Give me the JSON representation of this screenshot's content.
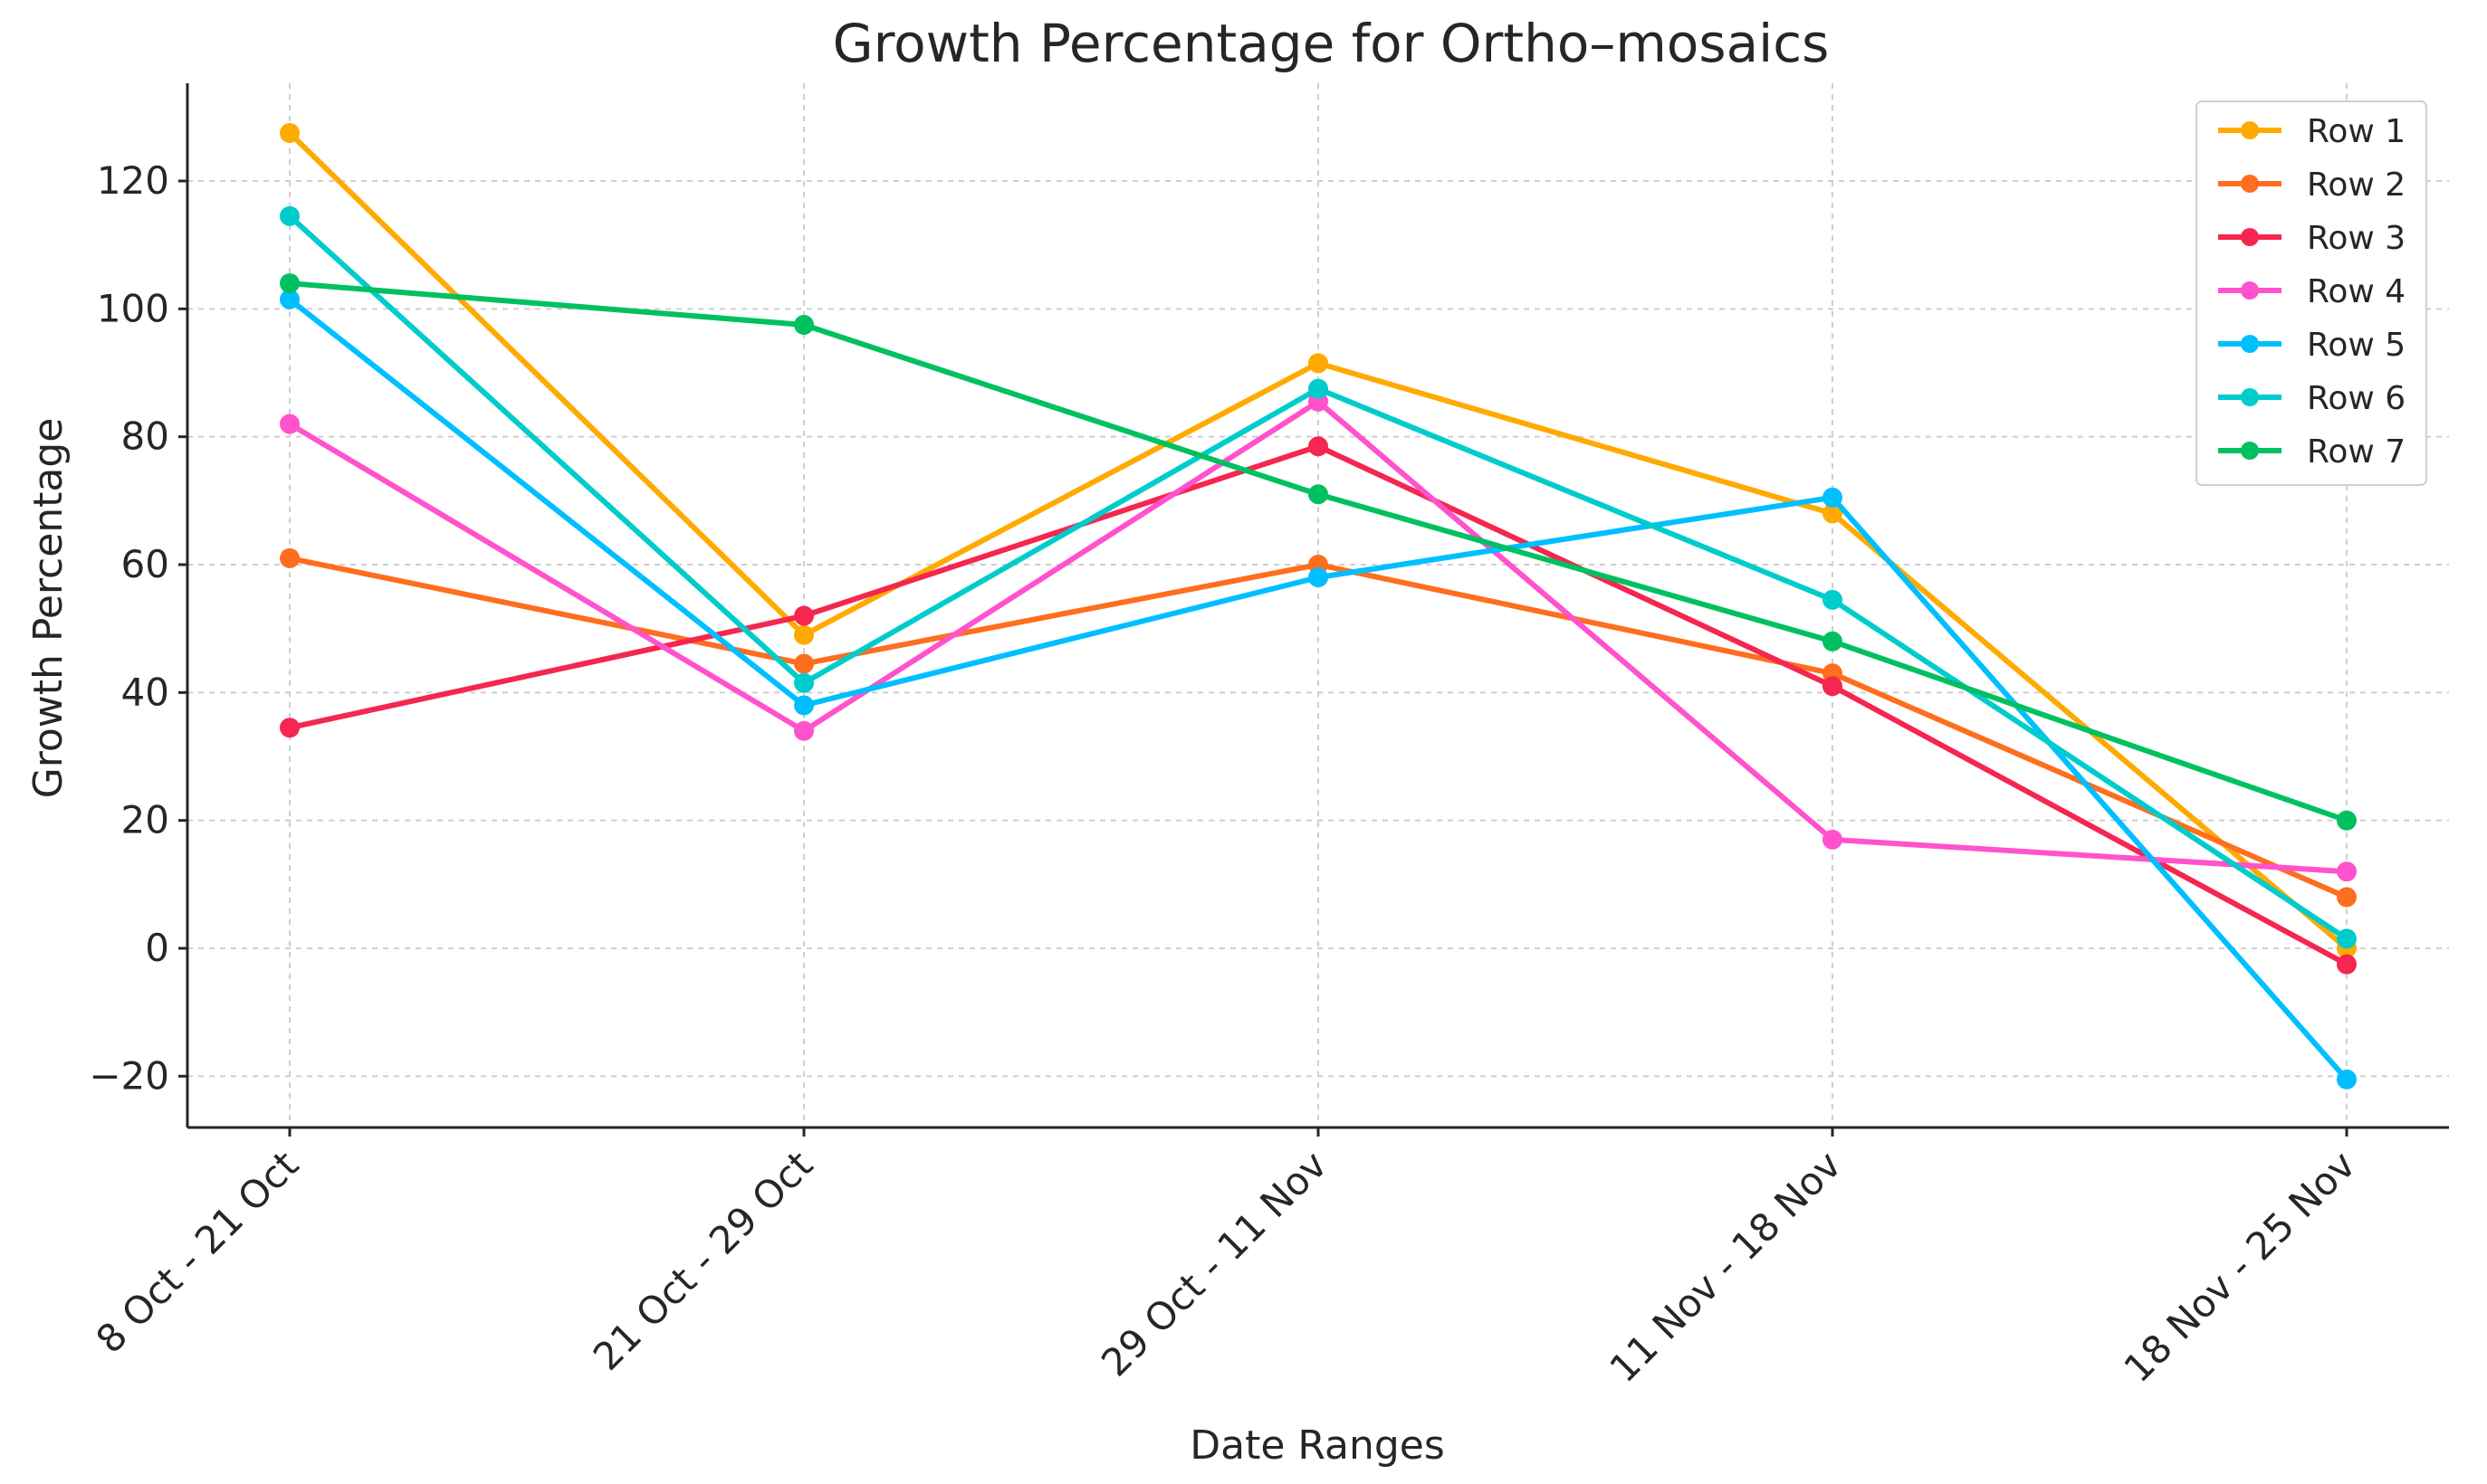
{
  "chart_data": {
    "type": "line",
    "title": "Growth Percentage for Ortho–mosaics",
    "xlabel": "Date Ranges",
    "ylabel": "Growth Percentage",
    "categories": [
      "8 Oct - 21 Oct",
      "21 Oct - 29 Oct",
      "29 Oct - 11 Nov",
      "11 Nov - 18 Nov",
      "18 Nov - 25 Nov"
    ],
    "yticks": [
      -20,
      0,
      20,
      40,
      60,
      80,
      100,
      120
    ],
    "ytick_labels": [
      "−20",
      "0",
      "20",
      "40",
      "60",
      "80",
      "100",
      "120"
    ],
    "ylim": [
      -28,
      135
    ],
    "grid": true,
    "legend_position": "top-right",
    "series": [
      {
        "name": "Row 1",
        "color": "#FFAA00",
        "values": [
          127.5,
          49,
          91.5,
          68,
          0
        ]
      },
      {
        "name": "Row 2",
        "color": "#FF6E1F",
        "values": [
          61,
          44.5,
          60,
          43,
          8
        ]
      },
      {
        "name": "Row 3",
        "color": "#F5264F",
        "values": [
          34.5,
          52,
          78.5,
          41,
          -2.5
        ]
      },
      {
        "name": "Row 4",
        "color": "#FF52CC",
        "values": [
          82,
          34,
          85.5,
          17,
          12
        ]
      },
      {
        "name": "Row 5",
        "color": "#00BFFF",
        "values": [
          101.5,
          38,
          58,
          70.5,
          -20.5
        ]
      },
      {
        "name": "Row 6",
        "color": "#00CCCC",
        "values": [
          114.5,
          41.5,
          87.5,
          54.5,
          1.5
        ]
      },
      {
        "name": "Row 7",
        "color": "#00C060",
        "values": [
          104,
          97.5,
          71,
          48,
          20
        ]
      }
    ]
  }
}
